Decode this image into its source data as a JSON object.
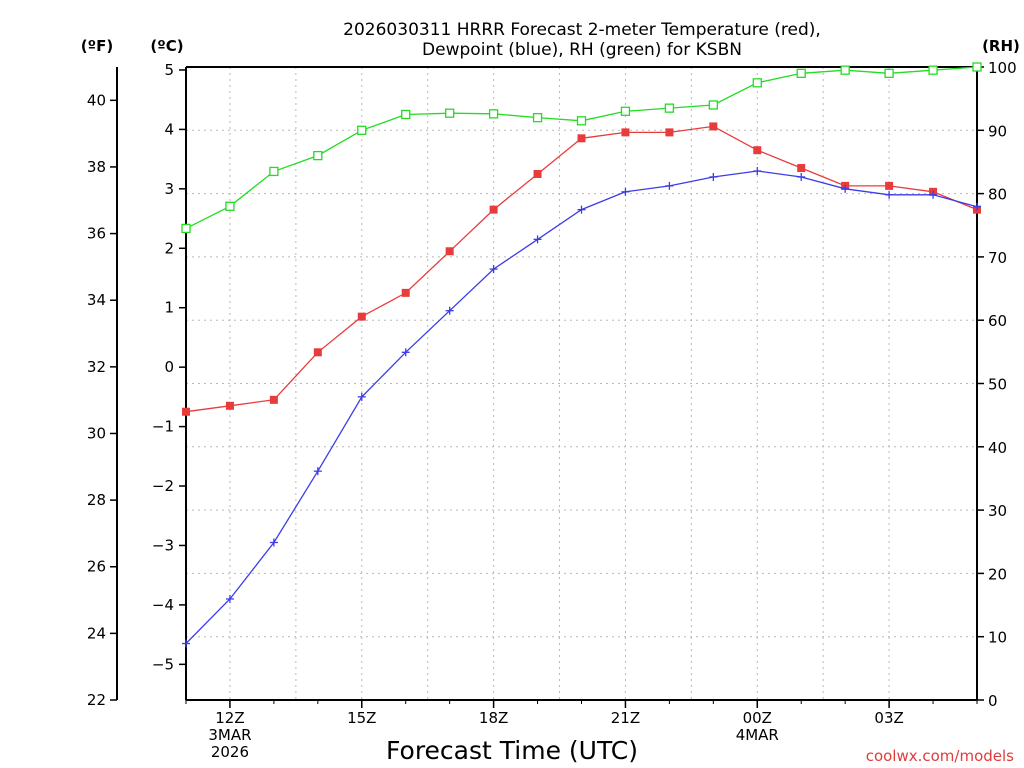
{
  "chart_data": {
    "type": "line",
    "title": "2026030311 HRRR Forecast 2-meter Temperature (red),",
    "subtitle": "Dewpoint (blue), RH (green) for KSBN",
    "xlabel": "Forecast Time (UTC)",
    "left_unit_f": "(ºF)",
    "left_unit_c": "(ºC)",
    "right_unit": "(RH)",
    "credit": "coolwx.com/models",
    "x_hours": [
      11,
      12,
      13,
      14,
      15,
      16,
      17,
      18,
      19,
      20,
      21,
      22,
      23,
      24,
      25,
      26,
      27,
      28,
      29
    ],
    "x_ticks": [
      {
        "hour": 12,
        "lines": [
          "12Z",
          "3MAR",
          "2026"
        ]
      },
      {
        "hour": 15,
        "lines": [
          "15Z"
        ]
      },
      {
        "hour": 18,
        "lines": [
          "18Z"
        ]
      },
      {
        "hour": 21,
        "lines": [
          "21Z"
        ]
      },
      {
        "hour": 24,
        "lines": [
          "00Z",
          "4MAR"
        ]
      },
      {
        "hour": 27,
        "lines": [
          "03Z"
        ]
      }
    ],
    "xlim": [
      11,
      29
    ],
    "ylim_c": [
      -5.6,
      5.05
    ],
    "ylim_f": [
      22,
      41
    ],
    "ylim_rh": [
      0,
      100
    ],
    "yticks_c": [
      -5,
      -4,
      -3,
      -2,
      -1,
      0,
      1,
      2,
      3,
      4,
      5
    ],
    "yticks_f": [
      22,
      24,
      26,
      28,
      30,
      32,
      34,
      36,
      38,
      40
    ],
    "yticks_rh": [
      0,
      10,
      20,
      30,
      40,
      50,
      60,
      70,
      80,
      90,
      100
    ],
    "series": [
      {
        "name": "Temperature",
        "unit": "C",
        "color": "#e83c3c",
        "marker": "filled-square",
        "values": [
          -0.75,
          -0.65,
          -0.55,
          0.25,
          0.85,
          1.25,
          1.95,
          2.65,
          3.25,
          3.85,
          3.95,
          3.95,
          4.05,
          3.65,
          3.35,
          3.05,
          3.05,
          2.95,
          2.65
        ]
      },
      {
        "name": "Dewpoint",
        "unit": "C",
        "color": "#3c3ce8",
        "marker": "plus",
        "values": [
          -4.65,
          -3.9,
          -2.95,
          -1.75,
          -0.5,
          0.25,
          0.95,
          1.65,
          2.15,
          2.65,
          2.95,
          3.05,
          3.2,
          3.3,
          3.2,
          3.0,
          2.9,
          2.9,
          2.7
        ]
      },
      {
        "name": "RH",
        "unit": "%",
        "color": "#22dd22",
        "marker": "open-square",
        "values": [
          74.5,
          78.0,
          83.5,
          86.0,
          90.0,
          92.5,
          92.7,
          92.6,
          92.0,
          91.5,
          93.0,
          93.5,
          94.0,
          97.5,
          99.0,
          99.5,
          99.0,
          99.5,
          100
        ]
      }
    ]
  }
}
